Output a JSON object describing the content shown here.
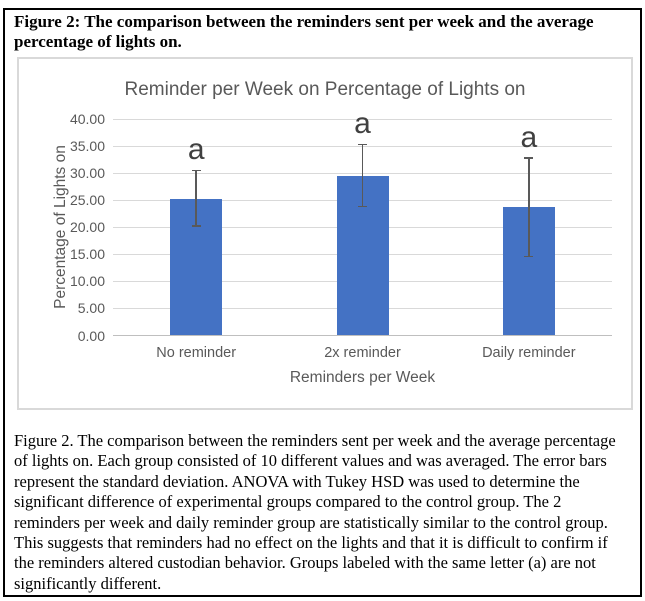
{
  "figure_title": "Figure 2: The comparison between the reminders sent per week and the average percentage of lights on.",
  "caption": "Figure 2. The comparison between the reminders sent per week and the average percentage of lights on. Each group consisted of 10 different values and was averaged. The error bars represent the standard deviation. ANOVA with Tukey HSD was used to determine the significant difference of experimental groups compared to the control group. The 2 reminders per week and daily reminder group are statistically similar to the control group. This suggests that reminders had no effect on the lights and that it is difficult to confirm if the reminders altered custodian behavior. Groups labeled with the same letter (a) are not significantly different.",
  "chart_data": {
    "type": "bar",
    "title": "Reminder per Week on Percentage of Lights on",
    "xlabel": "Reminders per Week",
    "ylabel": "Percentage of Lights on",
    "categories": [
      "No reminder",
      "2x reminder",
      "Daily reminder"
    ],
    "values": [
      25.2,
      29.5,
      23.7
    ],
    "error_bars": {
      "top": [
        30.5,
        35.3,
        32.8
      ],
      "bottom": [
        20.2,
        23.8,
        14.6
      ]
    },
    "significance_labels": [
      "a",
      "a",
      "a"
    ],
    "ylim": [
      0,
      40
    ],
    "y_ticks": [
      "0.00",
      "5.00",
      "10.00",
      "15.00",
      "20.00",
      "25.00",
      "30.00",
      "35.00",
      "40.00"
    ],
    "grid": true,
    "legend": "none",
    "colors": {
      "bar": "#4472C4",
      "error": "#595959",
      "grid": "#d9d9d9",
      "axis_line": "#bfbfbf",
      "axis_text": "#595959",
      "title_text": "#595959",
      "sig_label": "#404040"
    }
  }
}
